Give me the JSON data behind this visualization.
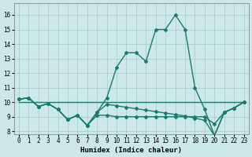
{
  "xlabel": "Humidex (Indice chaleur)",
  "xlim": [
    -0.5,
    23.5
  ],
  "ylim": [
    7.8,
    16.8
  ],
  "yticks": [
    8,
    9,
    10,
    11,
    12,
    13,
    14,
    15,
    16
  ],
  "xticks": [
    0,
    1,
    2,
    3,
    4,
    5,
    6,
    7,
    8,
    9,
    10,
    11,
    12,
    13,
    14,
    15,
    16,
    17,
    18,
    19,
    20,
    21,
    22,
    23
  ],
  "bg_color": "#cce8e8",
  "grid_color": "#aacece",
  "line_color": "#1a7a6e",
  "line1_x": [
    0,
    1,
    2,
    3,
    4,
    5,
    6,
    7,
    8,
    9,
    10,
    11,
    12,
    13,
    14,
    15,
    16,
    17,
    18,
    19,
    20,
    21,
    22,
    23
  ],
  "line1_y": [
    10.2,
    10.3,
    9.7,
    9.9,
    9.5,
    8.8,
    9.1,
    8.4,
    9.3,
    10.3,
    12.4,
    13.4,
    13.4,
    12.8,
    15.0,
    15.0,
    16.0,
    15.0,
    11.0,
    9.5,
    7.7,
    9.3,
    9.6,
    10.0
  ],
  "line2_x": [
    0,
    1,
    2,
    3,
    4,
    5,
    6,
    7,
    8,
    9,
    10,
    11,
    12,
    13,
    14,
    15,
    16,
    17,
    18,
    19,
    20,
    21,
    22,
    23
  ],
  "line2_y": [
    10.2,
    10.3,
    9.7,
    9.9,
    9.5,
    8.8,
    9.1,
    8.4,
    9.1,
    9.1,
    9.0,
    9.0,
    9.0,
    9.0,
    9.0,
    9.0,
    9.0,
    9.0,
    9.0,
    9.0,
    8.5,
    9.3,
    9.6,
    10.0
  ],
  "line3_x": [
    0,
    23
  ],
  "line3_y": [
    10.0,
    10.0
  ],
  "line4_x": [
    0,
    1,
    2,
    3,
    4,
    5,
    6,
    7,
    8,
    9,
    10,
    11,
    12,
    13,
    14,
    15,
    16,
    17,
    18,
    19,
    20,
    21,
    22,
    23
  ],
  "line4_y": [
    10.2,
    10.3,
    9.7,
    9.9,
    9.5,
    8.8,
    9.1,
    8.4,
    9.3,
    9.85,
    9.75,
    9.65,
    9.55,
    9.45,
    9.35,
    9.25,
    9.15,
    9.05,
    8.9,
    8.75,
    7.7,
    9.3,
    9.6,
    10.0
  ],
  "lw": 1.0,
  "ms": 2.0,
  "tick_fs": 5.5,
  "label_fs": 6.5
}
